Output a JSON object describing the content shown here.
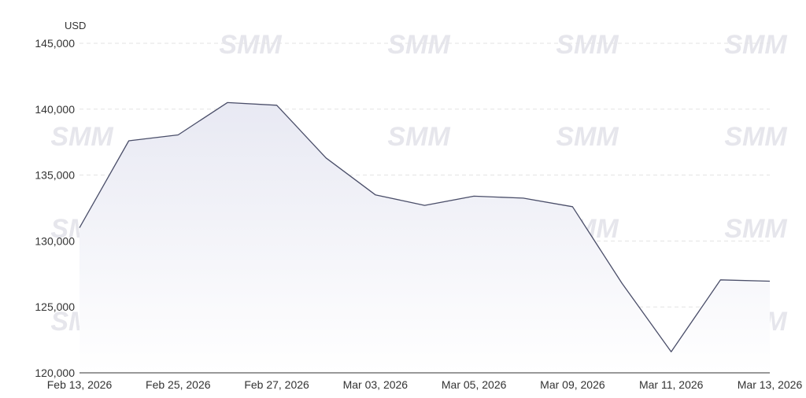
{
  "watermark": "SMM",
  "chart_data": {
    "type": "area",
    "unit_label": "USD",
    "x": [
      "Feb 13, 2026",
      "Feb 24, 2026",
      "Feb 25, 2026",
      "Feb 26, 2026",
      "Feb 27, 2026",
      "Mar 02, 2026",
      "Mar 03, 2026",
      "Mar 04, 2026",
      "Mar 05, 2026",
      "Mar 06, 2026",
      "Mar 09, 2026",
      "Mar 10, 2026",
      "Mar 11, 2026",
      "Mar 12, 2026",
      "Mar 13, 2026"
    ],
    "x_tick_labels": [
      "Feb 13, 2026",
      "Feb 25, 2026",
      "Feb 27, 2026",
      "Mar 03, 2026",
      "Mar 05, 2026",
      "Mar 09, 2026",
      "Mar 11, 2026",
      "Mar 13, 2026"
    ],
    "values": [
      131000,
      137600,
      138050,
      140500,
      140300,
      136300,
      133500,
      132700,
      133400,
      133250,
      132600,
      126800,
      121600,
      127050,
      126950
    ],
    "y_ticks": [
      "120,000",
      "125,000",
      "130,000",
      "135,000",
      "140,000",
      "145,000"
    ],
    "ylim": [
      120000,
      145000
    ],
    "grid": true,
    "colors": {
      "line": "#4a4e69",
      "area_top": "#e8e9f3",
      "area_bottom": "#ffffff",
      "grid": "#e3e3e3",
      "axis": "#333333"
    }
  }
}
